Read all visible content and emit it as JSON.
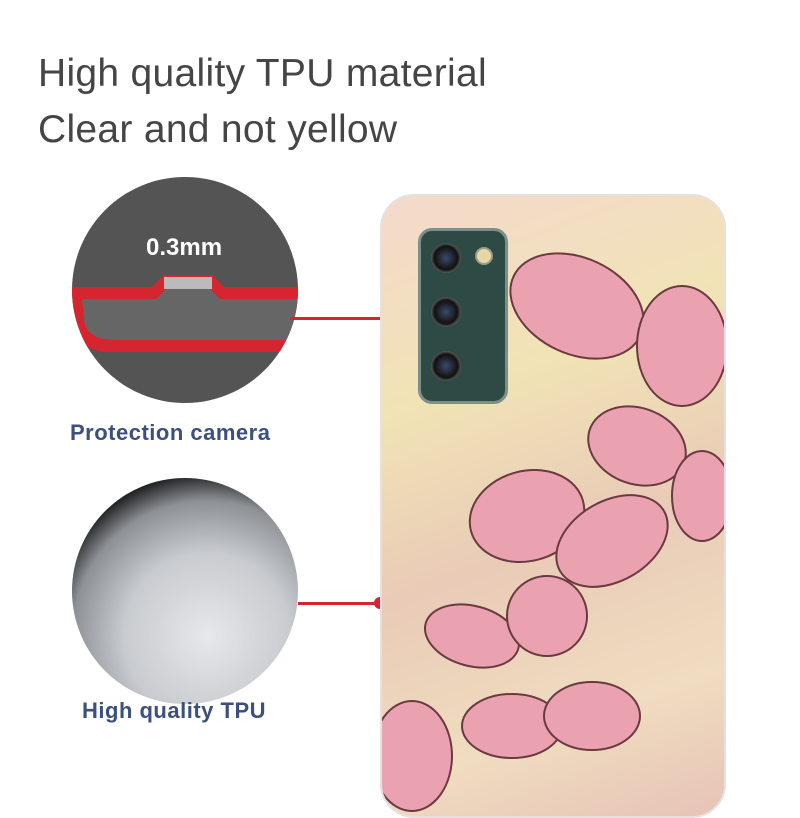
{
  "headline": {
    "line1": "High quality TPU material",
    "line2": "Clear and not yellow"
  },
  "callouts": [
    {
      "label": "0.3mm",
      "caption": "Protection camera"
    },
    {
      "caption": "High quality TPU"
    }
  ],
  "colors": {
    "accent": "#d5262f",
    "caption": "#3d4f7c",
    "text": "#454545",
    "butterfly": "#eaa1b0"
  }
}
